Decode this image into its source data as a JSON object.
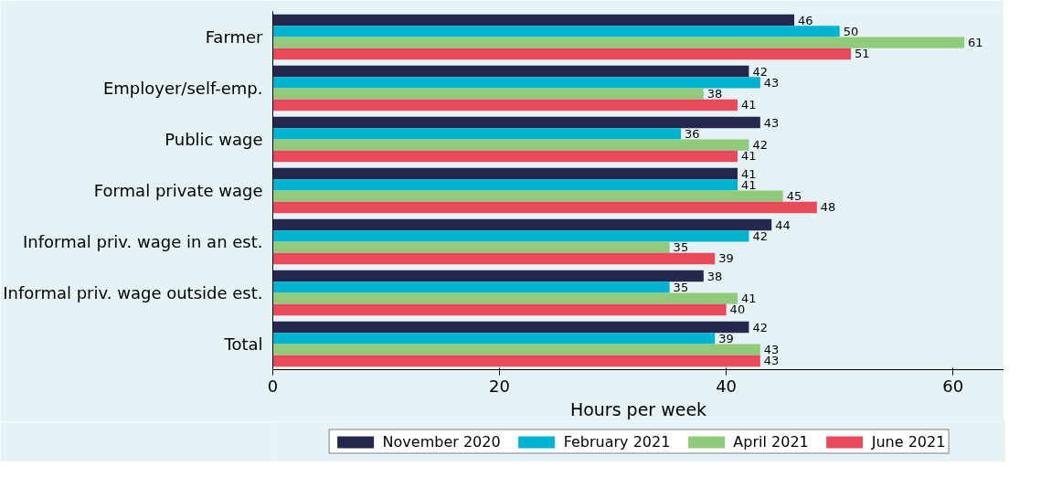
{
  "chart_data": {
    "type": "bar",
    "orientation": "horizontal",
    "xlabel": "Hours per week",
    "categories": [
      "Farmer",
      "Employer/self-emp.",
      "Public wage",
      "Formal private wage",
      "Informal priv. wage in an est.",
      "Informal priv. wage outside est.",
      "Total"
    ],
    "series": [
      {
        "name": "November 2020",
        "color": "#25274f",
        "values": [
          46,
          42,
          43,
          41,
          44,
          38,
          42
        ]
      },
      {
        "name": "February 2021",
        "color": "#00b3d1",
        "values": [
          50,
          43,
          36,
          41,
          42,
          35,
          39
        ]
      },
      {
        "name": "April 2021",
        "color": "#8fcb7b",
        "values": [
          61,
          38,
          42,
          45,
          35,
          41,
          43
        ]
      },
      {
        "name": "June 2021",
        "color": "#e84a5b",
        "values": [
          51,
          41,
          41,
          48,
          39,
          40,
          43
        ]
      }
    ],
    "xlim": [
      0,
      64.5
    ],
    "xticks": [
      0,
      20,
      40,
      60
    ],
    "data_labels": true,
    "grid": false,
    "legend": "bottom"
  }
}
